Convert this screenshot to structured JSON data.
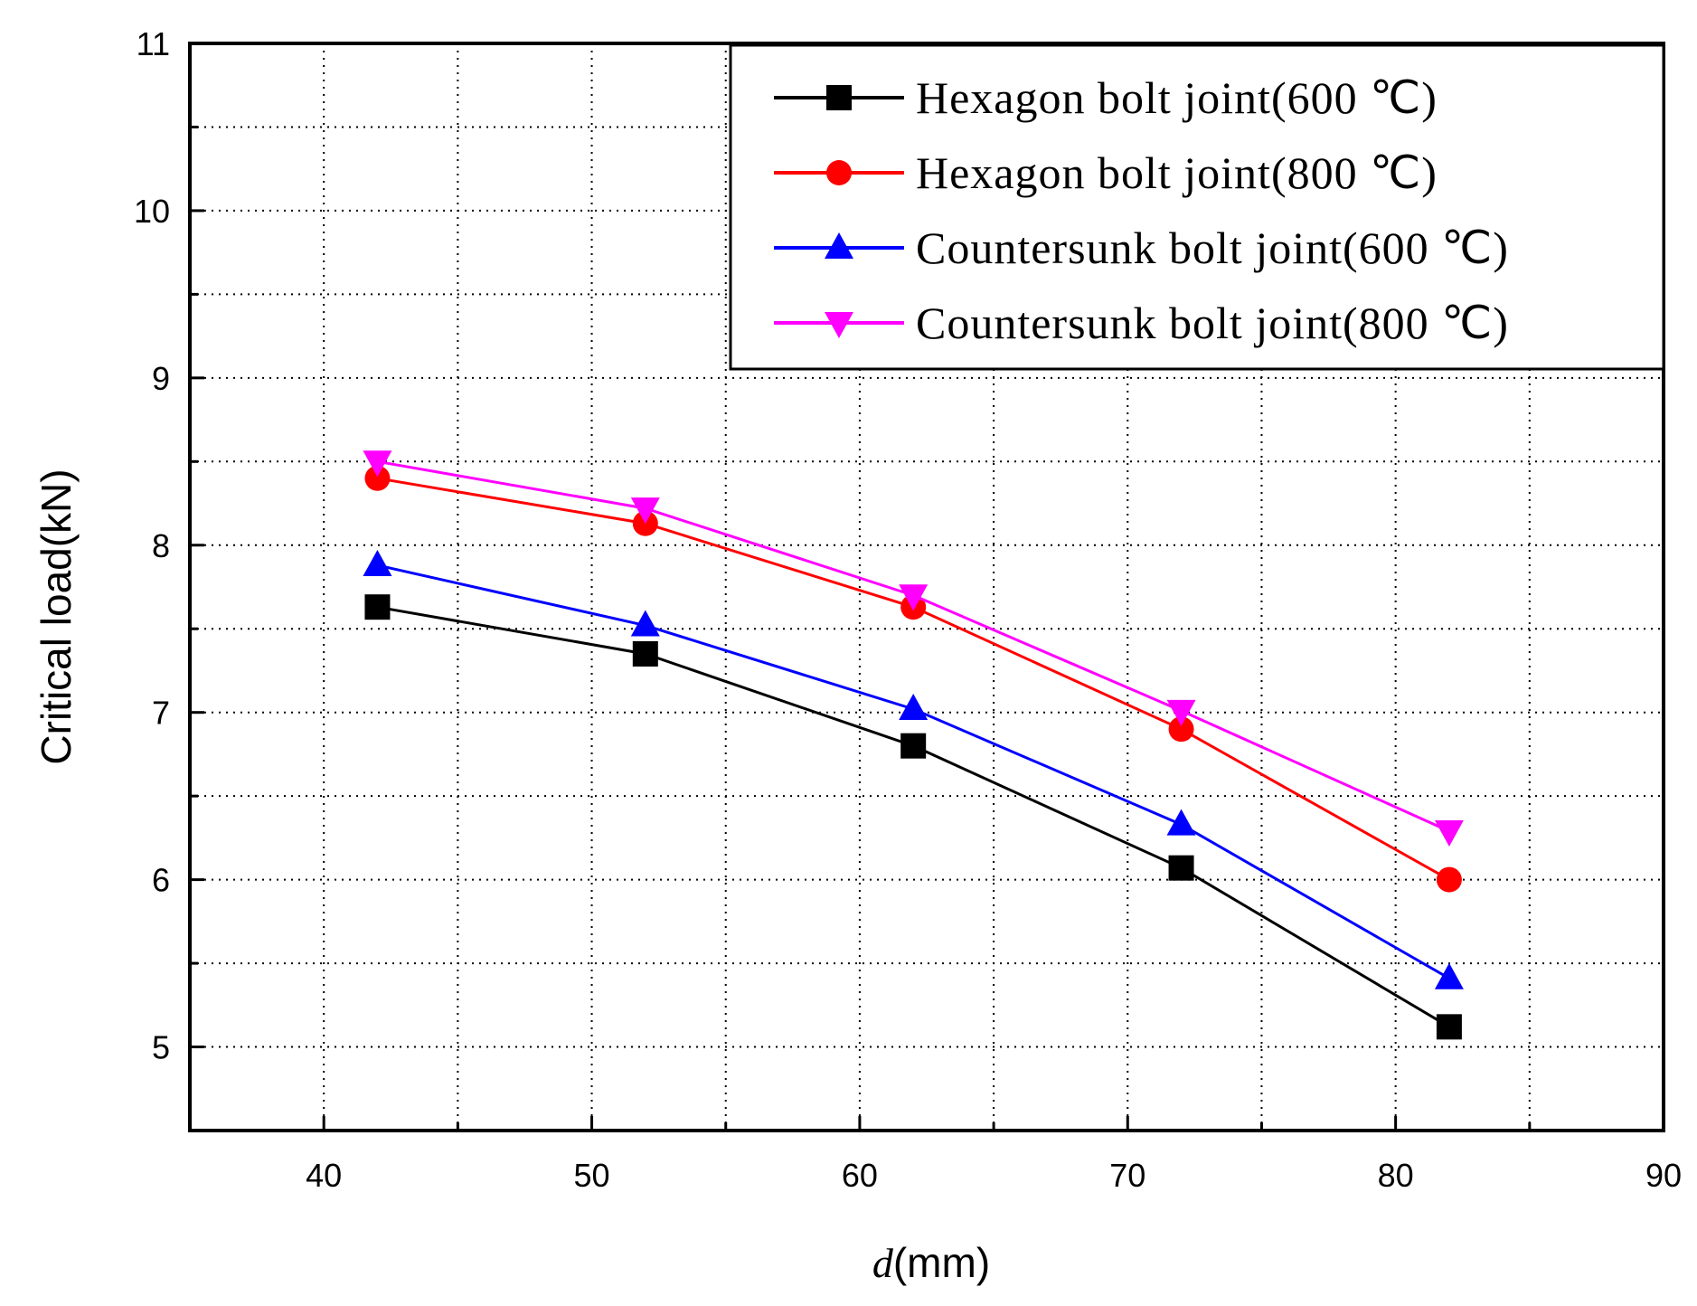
{
  "chart_data": {
    "type": "line",
    "title": "",
    "xlabel_italic": "d",
    "xlabel_unit": "(mm)",
    "ylabel": "Critical load(kN)",
    "xlim": [
      35,
      90
    ],
    "ylim": [
      4.5,
      11
    ],
    "xticks": [
      40,
      50,
      60,
      70,
      80,
      90
    ],
    "yticks": [
      5,
      6,
      7,
      8,
      9,
      10,
      11
    ],
    "grid": true,
    "legend_position": "top-right",
    "x": [
      42,
      52,
      62,
      72,
      82
    ],
    "series": [
      {
        "name": "Hexagon bolt joint(600 ℃)",
        "color": "#000000",
        "marker": "square",
        "values": [
          7.63,
          7.35,
          6.8,
          6.07,
          5.12
        ]
      },
      {
        "name": "Hexagon bolt joint(800 ℃)",
        "color": "#ff0000",
        "marker": "circle",
        "values": [
          8.4,
          8.13,
          7.63,
          6.9,
          6.0
        ]
      },
      {
        "name": "Countersunk bolt joint(600 ℃)",
        "color": "#0000ff",
        "marker": "triangle-up",
        "values": [
          7.88,
          7.52,
          7.02,
          6.33,
          5.41
        ]
      },
      {
        "name": "Countersunk bolt joint(800 ℃)",
        "color": "#ff00ff",
        "marker": "triangle-down",
        "values": [
          8.5,
          8.22,
          7.7,
          7.01,
          6.29
        ]
      }
    ]
  }
}
